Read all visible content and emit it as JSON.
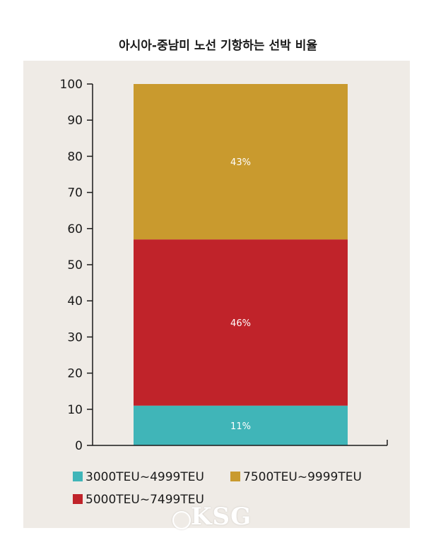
{
  "chart_data": {
    "type": "bar",
    "stacked": true,
    "title": "아시아-중남미 노선 기항하는 선박 비율",
    "ylim": [
      0,
      100
    ],
    "yticks": [
      0,
      10,
      20,
      30,
      40,
      50,
      60,
      70,
      80,
      90,
      100
    ],
    "grid": false,
    "legend_position": "bottom",
    "series": [
      {
        "name": "3000TEU~4999TEU",
        "value": 11,
        "label": "11%",
        "color": "#40b5b8"
      },
      {
        "name": "5000TEU~7499TEU",
        "value": 46,
        "label": "46%",
        "color": "#c0232a"
      },
      {
        "name": "7500TEU~9999TEU",
        "value": 43,
        "label": "43%",
        "color": "#c99a2e"
      }
    ]
  },
  "colors": {
    "panel_background": "#efebe6",
    "axis": "#1a1a1a"
  },
  "watermark": {
    "text": "KSG",
    "icon": "ship-wheel-icon"
  }
}
